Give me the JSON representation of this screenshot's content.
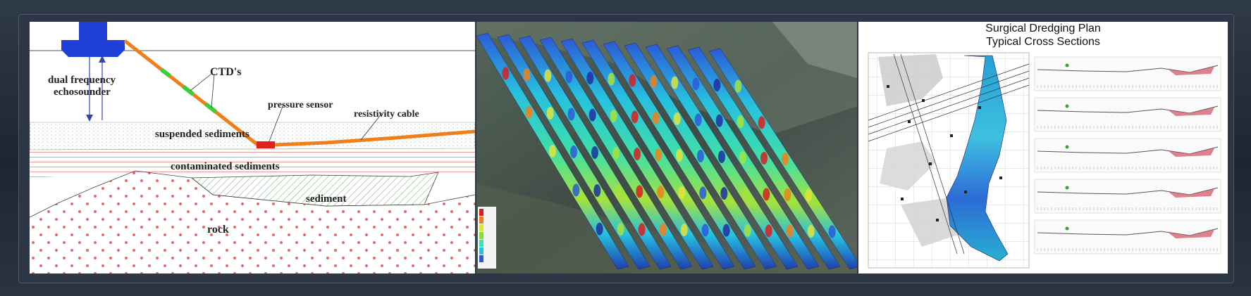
{
  "panel1": {
    "labels": {
      "echosounder_line1": "dual frequency",
      "echosounder_line2": "echosounder",
      "ctds": "CTD's",
      "pressure_sensor": "pressure sensor",
      "resistivity_cable": "resistivity cable",
      "suspended_sediments": "suspended sediments",
      "contaminated_sediments": "contaminated sediments",
      "sediment": "sediment",
      "rock": "rock"
    },
    "colors": {
      "boat": "#1f3fd6",
      "cable": "#f07f1a",
      "ctd": "#3ccf3c",
      "sensor": "#e0201c",
      "rock_dots": "#e06a6a",
      "sediment_hatch": "#6aa86a"
    }
  },
  "panel3": {
    "title_line1": "Surgical Dredging Plan",
    "title_line2": "Typical Cross Sections"
  }
}
